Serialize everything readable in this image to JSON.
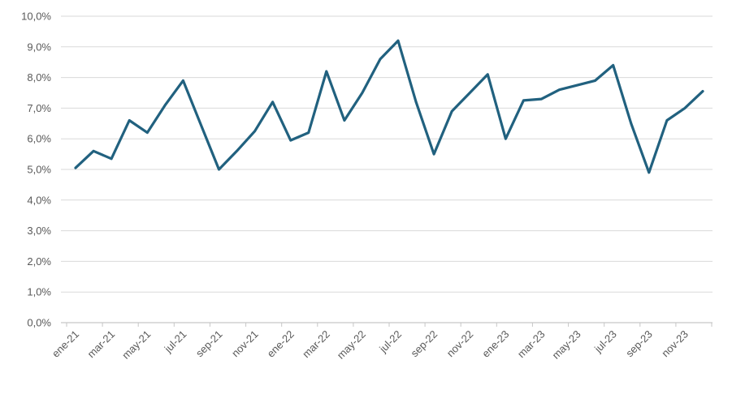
{
  "chart_data": {
    "type": "line",
    "title": "",
    "xlabel": "",
    "ylabel": "",
    "x": [
      "ene-21",
      "feb-21",
      "mar-21",
      "abr-21",
      "may-21",
      "jun-21",
      "jul-21",
      "ago-21",
      "sep-21",
      "oct-21",
      "nov-21",
      "dic-21",
      "ene-22",
      "feb-22",
      "mar-22",
      "abr-22",
      "may-22",
      "jun-22",
      "jul-22",
      "ago-22",
      "sep-22",
      "oct-22",
      "nov-22",
      "dic-22",
      "ene-23",
      "feb-23",
      "mar-23",
      "abr-23",
      "may-23",
      "jun-23",
      "jul-23",
      "ago-23",
      "sep-23",
      "oct-23",
      "nov-23",
      "dic-23"
    ],
    "values": [
      5.05,
      5.6,
      5.35,
      6.6,
      6.2,
      7.1,
      7.9,
      6.45,
      5.0,
      5.6,
      6.25,
      7.2,
      5.95,
      6.2,
      8.2,
      6.6,
      7.5,
      8.6,
      9.2,
      7.2,
      5.5,
      6.9,
      7.5,
      8.1,
      6.0,
      7.25,
      7.3,
      7.6,
      7.75,
      7.9,
      8.4,
      6.5,
      4.9,
      6.6,
      7.0,
      7.55
    ],
    "ylim": [
      0,
      10
    ],
    "y_tick_step": 1,
    "y_tick_labels": [
      "0,0%",
      "1,0%",
      "2,0%",
      "3,0%",
      "4,0%",
      "5,0%",
      "6,0%",
      "7,0%",
      "8,0%",
      "9,0%",
      "10,0%"
    ],
    "x_tick_label_interval": 2,
    "x_tick_labels_shown": [
      "ene-21",
      "mar-21",
      "may-21",
      "jul-21",
      "sep-21",
      "nov-21",
      "ene-22",
      "mar-22",
      "may-22",
      "jul-22",
      "sep-22",
      "nov-22",
      "ene-23",
      "mar-23",
      "may-23",
      "jul-23",
      "sep-23",
      "nov-23"
    ],
    "grid": true,
    "legend": false,
    "line_color": "#21617f",
    "label_color": "#595959",
    "gridline_color": "#d9d9d9",
    "axis_color": "#c6c6c6",
    "background_color": "#ffffff",
    "decimal_separator": ","
  }
}
